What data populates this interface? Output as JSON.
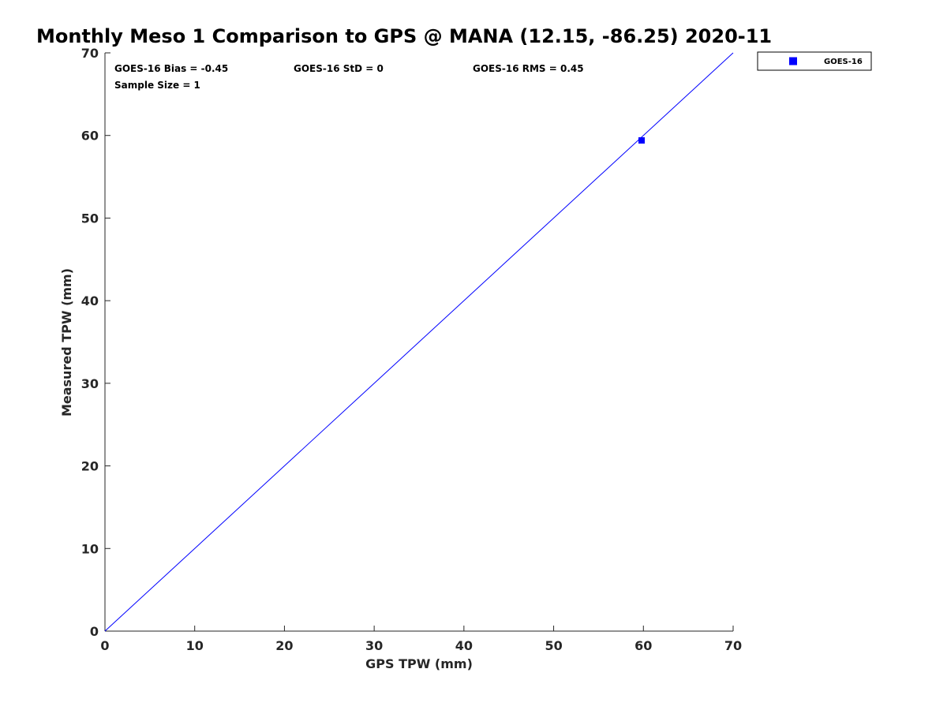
{
  "chart_data": {
    "type": "scatter",
    "title": "Monthly Meso 1 Comparison to GPS @ MANA (12.15, -86.25) 2020-11",
    "xlabel": "GPS TPW (mm)",
    "ylabel": "Measured TPW (mm)",
    "xlim": [
      0,
      70
    ],
    "ylim": [
      0,
      70
    ],
    "xticks": [
      0,
      10,
      20,
      30,
      40,
      50,
      60,
      70
    ],
    "yticks": [
      0,
      10,
      20,
      30,
      40,
      50,
      60,
      70
    ],
    "grid": false,
    "legend_position": "outside-top-right",
    "reference_line": {
      "type": "one-to-one",
      "x": [
        0,
        70
      ],
      "y": [
        0,
        70
      ],
      "color": "#0000ff"
    },
    "series": [
      {
        "name": "GOES-16",
        "marker": "square",
        "color": "#0000ff",
        "points": [
          {
            "x": 59.8,
            "y": 59.4
          }
        ]
      }
    ],
    "annotations": {
      "bias": "GOES-16 Bias = -0.45",
      "std": "GOES-16 StD = 0",
      "rms": "GOES-16 RMS = 0.45",
      "sample_size": "Sample Size = 1"
    }
  }
}
